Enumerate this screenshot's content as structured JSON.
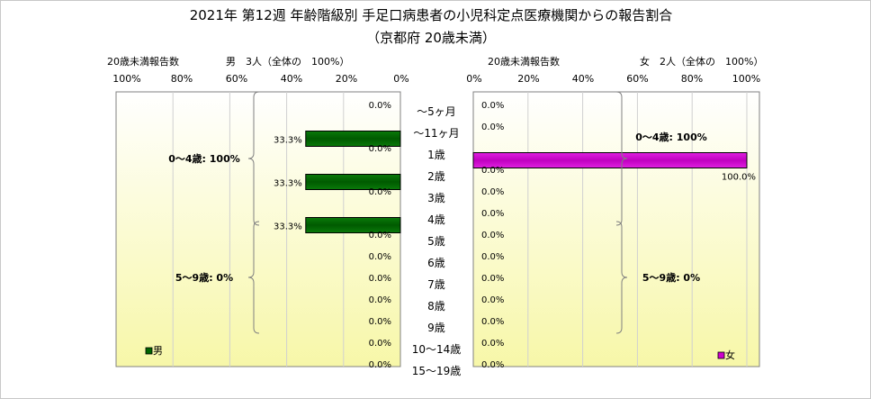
{
  "chart_data": {
    "type": "bar",
    "title": "2021年 第12週 年齢階級別 手足口病患者の小児科定点医療機関からの報告割合",
    "subtitle": "（京都府 20歳未満）",
    "categories": [
      "～5ヶ月",
      "～11ヶ月",
      "1歳",
      "2歳",
      "3歳",
      "4歳",
      "5歳",
      "6歳",
      "7歳",
      "8歳",
      "9歳",
      "10～14歳",
      "15～19歳"
    ],
    "axis_caption": "20歳未満報告数",
    "male": {
      "header": "男　3人（全体の　100%）",
      "legend": "男",
      "color": "#006400",
      "values": [
        0.0,
        33.3,
        0.0,
        33.3,
        0.0,
        33.3,
        0.0,
        0.0,
        0.0,
        0.0,
        0.0,
        0.0,
        0.0
      ],
      "labels": [
        "0.0%",
        "33.3%",
        "0.0%",
        "33.3%",
        "0.0%",
        "33.3%",
        "0.0%",
        "0.0%",
        "0.0%",
        "0.0%",
        "0.0%",
        "0.0%",
        "0.0%"
      ],
      "ticks": [
        "100%",
        "80%",
        "60%",
        "40%",
        "20%",
        "0%"
      ],
      "groups": [
        {
          "label": "0～4歳: 100%",
          "from": 0,
          "to": 5
        },
        {
          "label": "5～9歳: 0%",
          "from": 6,
          "to": 10
        }
      ]
    },
    "female": {
      "header": "女　2人（全体の　100%）",
      "legend": "女",
      "color": "#cc00cc",
      "values": [
        0.0,
        0.0,
        100.0,
        0.0,
        0.0,
        0.0,
        0.0,
        0.0,
        0.0,
        0.0,
        0.0,
        0.0,
        0.0
      ],
      "labels": [
        "0.0%",
        "0.0%",
        "100.0%",
        "0.0%",
        "0.0%",
        "0.0%",
        "0.0%",
        "0.0%",
        "0.0%",
        "0.0%",
        "0.0%",
        "0.0%",
        "0.0%"
      ],
      "ticks": [
        "0%",
        "20%",
        "40%",
        "60%",
        "80%",
        "100%"
      ],
      "groups": [
        {
          "label": "0～4歳: 100%",
          "from": 0,
          "to": 5
        },
        {
          "label": "5～9歳: 0%",
          "from": 6,
          "to": 10
        }
      ]
    },
    "xlim": [
      0,
      100
    ],
    "grid": true
  }
}
